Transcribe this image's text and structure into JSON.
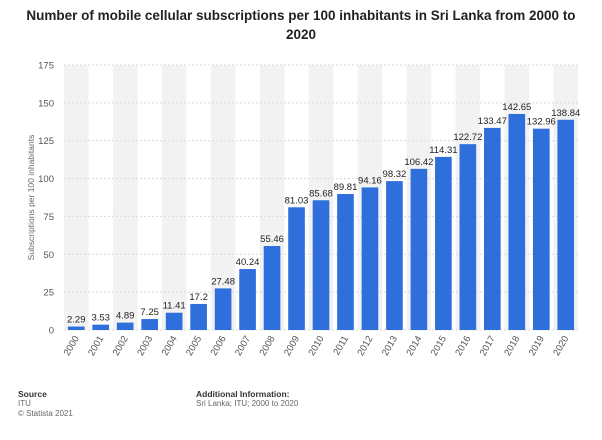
{
  "page": {
    "title": "Number of mobile cellular subscriptions per 100 inhabitants in Sri Lanka from 2000 to 2020"
  },
  "footer": {
    "source_heading": "Source",
    "source_name": "ITU",
    "copyright": "© Statista 2021",
    "additional_heading": "Additional Information:",
    "additional_text": "Sri Lanka; ITU; 2000 to 2020"
  },
  "colors": {
    "bar": "#2f6fdb",
    "band": "#f2f2f2",
    "grid": "#d9d9d9"
  },
  "chart_data": {
    "type": "bar",
    "title": "Number of mobile cellular subscriptions per 100 inhabitants in Sri Lanka from 2000 to 2020",
    "xlabel": "",
    "ylabel": "Subscriptions per 100 inhabitants",
    "ylim": [
      0,
      175
    ],
    "yticks": [
      0,
      25,
      50,
      75,
      100,
      125,
      150,
      175
    ],
    "grid": true,
    "categories": [
      "2000",
      "2001",
      "2002",
      "2003",
      "2004",
      "2005",
      "2006",
      "2007",
      "2008",
      "2009",
      "2010",
      "2011",
      "2012",
      "2013",
      "2014",
      "2015",
      "2016",
      "2017",
      "2018",
      "2019",
      "2020"
    ],
    "values": [
      2.29,
      3.53,
      4.89,
      7.25,
      11.41,
      17.2,
      27.48,
      40.24,
      55.46,
      81.03,
      85.68,
      89.81,
      94.16,
      98.32,
      106.42,
      114.31,
      122.72,
      133.47,
      142.65,
      132.96,
      138.84
    ],
    "value_labels": [
      "2.29",
      "3.53",
      "4.89",
      "7.25",
      "11.41",
      "17.2",
      "27.48",
      "40.24",
      "55.46",
      "81.03",
      "85.68",
      "89.81",
      "94.16",
      "98.32",
      "106.42",
      "114.31",
      "122.72",
      "133.47",
      "142.65",
      "132.96",
      "138.84"
    ]
  }
}
